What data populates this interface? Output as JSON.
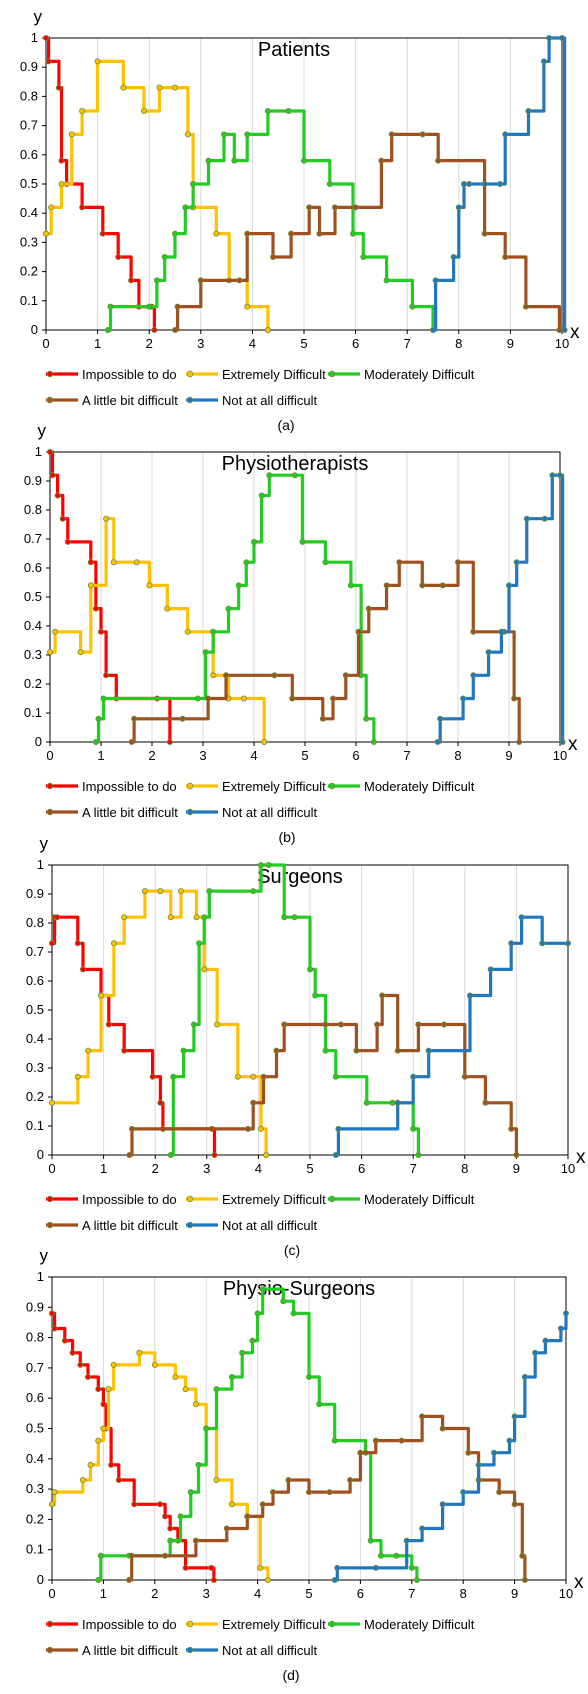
{
  "legend_labels": {
    "impossible": "Impossible to do",
    "extremely": "Extremely Difficult",
    "moderately": "Moderately Difficult",
    "little": "A little bit difficult",
    "not_at_all": "Not at all difficult"
  },
  "colors": {
    "impossible": "#ff0000",
    "extremely": "#ffc000",
    "moderately": "#22cc22",
    "little": "#a0501e",
    "not_at_all": "#1f77c0"
  },
  "chart_data": [
    {
      "type": "line",
      "title": "Patients",
      "xlabel": "x",
      "ylabel": "y",
      "xlim": [
        0,
        10
      ],
      "ylim": [
        0,
        1
      ],
      "xticks": [
        "0",
        "1",
        "2",
        "3",
        "4",
        "5",
        "6",
        "7",
        "8",
        "9",
        "10"
      ],
      "yticks": [
        "0",
        "0.1",
        "0.2",
        "0.3",
        "0.4",
        "0.5",
        "0.6",
        "0.7",
        "0.8",
        "0.9",
        "1"
      ],
      "caption": "(a)",
      "legend_position": "bottom",
      "series": [
        {
          "name": "Impossible to do",
          "key": "impossible",
          "x": [
            0,
            0.05,
            0.25,
            0.3,
            0.4,
            0.7,
            1.1,
            1.4,
            1.65,
            1.8,
            2.05,
            2.1
          ],
          "y": [
            1,
            0.92,
            0.83,
            0.58,
            0.5,
            0.42,
            0.33,
            0.25,
            0.17,
            0.08,
            0.08,
            0
          ]
        },
        {
          "name": "Extremely Difficult",
          "key": "extremely",
          "x": [
            0,
            0.1,
            0.3,
            0.5,
            0.7,
            1,
            1.5,
            1.9,
            2.2,
            2.5,
            2.75,
            2.85,
            3.3,
            3.55,
            3.9,
            4.3
          ],
          "y": [
            0.33,
            0.42,
            0.5,
            0.67,
            0.75,
            0.92,
            0.83,
            0.75,
            0.83,
            0.83,
            0.67,
            0.42,
            0.33,
            0.17,
            0.08,
            0
          ]
        },
        {
          "name": "Moderately Difficult",
          "key": "moderately",
          "x": [
            1.2,
            1.25,
            2,
            2.15,
            2.3,
            2.5,
            2.7,
            2.85,
            3.15,
            3.45,
            3.65,
            3.9,
            4.3,
            4.7,
            5,
            5.5,
            5.95,
            6.15,
            6.6,
            7.1,
            7.5
          ],
          "y": [
            0,
            0.08,
            0.08,
            0.17,
            0.25,
            0.33,
            0.42,
            0.5,
            0.58,
            0.67,
            0.58,
            0.67,
            0.75,
            0.75,
            0.58,
            0.5,
            0.33,
            0.25,
            0.17,
            0.08,
            0
          ]
        },
        {
          "name": "A little bit difficult",
          "key": "little",
          "x": [
            2.5,
            2.55,
            3,
            3.75,
            3.9,
            4.4,
            4.75,
            5.1,
            5.3,
            5.6,
            6,
            6.5,
            6.7,
            7.3,
            7.6,
            8.5,
            8.9,
            9.3,
            9.95
          ],
          "y": [
            0,
            0.08,
            0.17,
            0.17,
            0.33,
            0.25,
            0.33,
            0.42,
            0.33,
            0.42,
            0.42,
            0.58,
            0.67,
            0.67,
            0.58,
            0.33,
            0.25,
            0.08,
            0
          ]
        },
        {
          "name": "Not at all difficult",
          "key": "not_at_all",
          "x": [
            7.5,
            7.55,
            7.9,
            8,
            8.1,
            8.2,
            8.5,
            8.8,
            8.9,
            9.35,
            9.65,
            9.75,
            10,
            10.05
          ],
          "y": [
            0,
            0.17,
            0.25,
            0.42,
            0.5,
            0.5,
            0.5,
            0.5,
            0.67,
            0.75,
            0.92,
            1,
            1,
            0
          ]
        }
      ]
    },
    {
      "type": "line",
      "title": "Physiotherapists",
      "xlabel": "x",
      "ylabel": "y",
      "xlim": [
        0,
        10
      ],
      "ylim": [
        0,
        1
      ],
      "xticks": [
        "0",
        "1",
        "2",
        "3",
        "4",
        "5",
        "6",
        "7",
        "8",
        "9",
        "10"
      ],
      "yticks": [
        "0",
        "0.1",
        "0.2",
        "0.3",
        "0.4",
        "0.5",
        "0.6",
        "0.7",
        "0.8",
        "0.9",
        "1"
      ],
      "caption": "(b)",
      "legend_position": "bottom",
      "series": [
        {
          "name": "Impossible to do",
          "key": "impossible",
          "x": [
            0,
            0.05,
            0.15,
            0.25,
            0.35,
            0.8,
            0.9,
            1,
            1.1,
            1.3,
            2.1,
            2.35
          ],
          "y": [
            1,
            0.92,
            0.85,
            0.77,
            0.69,
            0.62,
            0.46,
            0.38,
            0.23,
            0.15,
            0.15,
            0
          ]
        },
        {
          "name": "Extremely Difficult",
          "key": "extremely",
          "x": [
            0,
            0.1,
            0.6,
            0.8,
            1.1,
            1.25,
            1.7,
            1.95,
            2.3,
            2.7,
            3.2,
            3.5,
            3.8,
            4.2
          ],
          "y": [
            0.31,
            0.38,
            0.31,
            0.54,
            0.77,
            0.62,
            0.62,
            0.54,
            0.46,
            0.38,
            0.23,
            0.15,
            0.15,
            0
          ]
        },
        {
          "name": "Moderately Difficult",
          "key": "moderately",
          "x": [
            0.9,
            0.95,
            1.05,
            2.9,
            3.05,
            3.2,
            3.5,
            3.7,
            3.85,
            4,
            4.15,
            4.3,
            4.8,
            4.95,
            5.4,
            5.9,
            6.1,
            6.2,
            6.35
          ],
          "y": [
            0,
            0.08,
            0.15,
            0.15,
            0.31,
            0.38,
            0.46,
            0.54,
            0.62,
            0.69,
            0.85,
            0.92,
            0.92,
            0.69,
            0.62,
            0.54,
            0.23,
            0.08,
            0
          ]
        },
        {
          "name": "A little bit difficult",
          "key": "little",
          "x": [
            1.6,
            1.65,
            2.6,
            3.1,
            3.45,
            4.4,
            4.75,
            5.35,
            5.55,
            5.8,
            6.05,
            6.25,
            6.6,
            6.85,
            7.3,
            7.7,
            8,
            8.3,
            8.9,
            9.1,
            9.2
          ],
          "y": [
            0,
            0.08,
            0.08,
            0.15,
            0.23,
            0.23,
            0.15,
            0.08,
            0.15,
            0.23,
            0.38,
            0.46,
            0.54,
            0.62,
            0.54,
            0.54,
            0.62,
            0.38,
            0.38,
            0.15,
            0
          ]
        },
        {
          "name": "Not at all difficult",
          "key": "not_at_all",
          "x": [
            7.6,
            7.65,
            8.1,
            8.3,
            8.6,
            8.85,
            9,
            9.15,
            9.35,
            9.7,
            9.85,
            10,
            10.05
          ],
          "y": [
            0,
            0.08,
            0.15,
            0.23,
            0.31,
            0.38,
            0.54,
            0.62,
            0.77,
            0.77,
            0.92,
            0.92,
            0
          ]
        }
      ]
    },
    {
      "type": "line",
      "title": "Surgeons",
      "xlabel": "x",
      "ylabel": "y",
      "xlim": [
        0,
        10
      ],
      "ylim": [
        0,
        1
      ],
      "xticks": [
        "0",
        "1",
        "2",
        "3",
        "4",
        "5",
        "6",
        "7",
        "8",
        "9",
        "10"
      ],
      "yticks": [
        "0",
        "0.1",
        "0.2",
        "0.3",
        "0.4",
        "0.5",
        "0.6",
        "0.7",
        "0.8",
        "0.9",
        "1"
      ],
      "caption": "(c)",
      "legend_position": "bottom",
      "series": [
        {
          "name": "Impossible to do",
          "key": "impossible",
          "x": [
            0,
            0.05,
            0.1,
            0.5,
            0.6,
            0.95,
            1.1,
            1.4,
            1.95,
            2.1,
            2.15,
            3.1,
            3.15
          ],
          "y": [
            0.73,
            0.82,
            0.82,
            0.73,
            0.64,
            0.55,
            0.45,
            0.36,
            0.27,
            0.18,
            0.09,
            0.09,
            0
          ]
        },
        {
          "name": "Extremely Difficult",
          "key": "extremely",
          "x": [
            0,
            0.5,
            0.7,
            0.95,
            1.2,
            1.4,
            1.8,
            2.1,
            2.3,
            2.5,
            2.8,
            2.95,
            3.2,
            3.6,
            3.9,
            4.05,
            4.15
          ],
          "y": [
            0.18,
            0.27,
            0.36,
            0.55,
            0.73,
            0.82,
            0.91,
            0.91,
            0.82,
            0.91,
            0.82,
            0.64,
            0.45,
            0.27,
            0.27,
            0.09,
            0
          ]
        },
        {
          "name": "Moderately Difficult",
          "key": "moderately",
          "x": [
            2.3,
            2.35,
            2.55,
            2.75,
            2.85,
            2.95,
            3.05,
            3.9,
            4.05,
            4.2,
            4.5,
            4.7,
            5,
            5.1,
            5.3,
            5.5,
            6.1,
            6.6,
            7.0,
            7.1
          ],
          "y": [
            0,
            0.27,
            0.36,
            0.45,
            0.73,
            0.82,
            0.91,
            0.91,
            1,
            1,
            0.82,
            0.82,
            0.64,
            0.55,
            0.36,
            0.27,
            0.18,
            0.18,
            0.09,
            0
          ]
        },
        {
          "name": "A little bit difficult",
          "key": "little",
          "x": [
            1.5,
            1.55,
            3.8,
            3.9,
            4.1,
            4.35,
            4.5,
            5.3,
            5.6,
            5.9,
            6.3,
            6.4,
            6.7,
            7.1,
            7.6,
            8,
            8.4,
            8.9,
            9.0
          ],
          "y": [
            0,
            0.09,
            0.09,
            0.18,
            0.27,
            0.36,
            0.45,
            0.45,
            0.45,
            0.36,
            0.45,
            0.55,
            0.36,
            0.45,
            0.45,
            0.27,
            0.18,
            0.09,
            0
          ]
        },
        {
          "name": "Not at all difficult",
          "key": "not_at_all",
          "x": [
            5.5,
            5.55,
            6.7,
            7,
            7.3,
            8.1,
            8.5,
            8.9,
            9.1,
            9.5,
            10
          ],
          "y": [
            0,
            0.09,
            0.18,
            0.27,
            0.36,
            0.55,
            0.64,
            0.73,
            0.82,
            0.73,
            0.73
          ]
        }
      ]
    },
    {
      "type": "line",
      "title": "Physio-Surgeons",
      "xlabel": "x",
      "ylabel": "y",
      "xlim": [
        0,
        10
      ],
      "ylim": [
        0,
        1
      ],
      "xticks": [
        "0",
        "1",
        "2",
        "3",
        "4",
        "5",
        "6",
        "7",
        "8",
        "9",
        "10"
      ],
      "yticks": [
        "0",
        "0.1",
        "0.2",
        "0.3",
        "0.4",
        "0.5",
        "0.6",
        "0.7",
        "0.8",
        "0.9",
        "1"
      ],
      "caption": "(d)",
      "legend_position": "bottom",
      "series": [
        {
          "name": "Impossible to do",
          "key": "impossible",
          "x": [
            0,
            0.05,
            0.25,
            0.4,
            0.55,
            0.7,
            0.9,
            1,
            1.05,
            1.15,
            1.3,
            1.6,
            2.1,
            2.2,
            2.3,
            2.45,
            2.6,
            3.1,
            3.15
          ],
          "y": [
            0.88,
            0.83,
            0.79,
            0.75,
            0.71,
            0.67,
            0.63,
            0.58,
            0.5,
            0.38,
            0.33,
            0.25,
            0.25,
            0.21,
            0.17,
            0.13,
            0.04,
            0.04,
            0
          ]
        },
        {
          "name": "Extremely Difficult",
          "key": "extremely",
          "x": [
            0,
            0.05,
            0.6,
            0.75,
            0.9,
            1,
            1.1,
            1.2,
            1.7,
            2,
            2.4,
            2.6,
            2.8,
            3,
            3.2,
            3.5,
            3.8,
            4.05,
            4.2
          ],
          "y": [
            0.25,
            0.29,
            0.33,
            0.38,
            0.46,
            0.5,
            0.63,
            0.71,
            0.75,
            0.71,
            0.67,
            0.63,
            0.58,
            0.5,
            0.33,
            0.25,
            0.21,
            0.04,
            0
          ]
        },
        {
          "name": "Moderately Difficult",
          "key": "moderately",
          "x": [
            0.9,
            0.95,
            1.5,
            2.3,
            2.5,
            2.7,
            2.85,
            3,
            3.2,
            3.5,
            3.7,
            3.9,
            4,
            4.1,
            4.5,
            4.7,
            5,
            5.2,
            5.5,
            6.1,
            6.2,
            6.4,
            6.7,
            7,
            7.1
          ],
          "y": [
            0,
            0.08,
            0.08,
            0.13,
            0.21,
            0.29,
            0.38,
            0.5,
            0.63,
            0.67,
            0.75,
            0.79,
            0.88,
            0.96,
            0.92,
            0.88,
            0.67,
            0.58,
            0.46,
            0.42,
            0.13,
            0.08,
            0.08,
            0.04,
            0
          ]
        },
        {
          "name": "A little bit difficult",
          "key": "little",
          "x": [
            1.5,
            1.55,
            2.2,
            2.8,
            3.4,
            3.8,
            4.1,
            4.3,
            4.6,
            5,
            5.4,
            5.8,
            6,
            6.3,
            6.8,
            7.2,
            7.6,
            8.1,
            8.3,
            8.7,
            9.0,
            9.15,
            9.2
          ],
          "y": [
            0,
            0.08,
            0.08,
            0.13,
            0.17,
            0.21,
            0.25,
            0.29,
            0.33,
            0.29,
            0.29,
            0.33,
            0.42,
            0.46,
            0.46,
            0.54,
            0.5,
            0.42,
            0.33,
            0.29,
            0.25,
            0.08,
            0
          ]
        },
        {
          "name": "Not at all difficult",
          "key": "not_at_all",
          "x": [
            5.5,
            5.55,
            6.3,
            6.9,
            7.2,
            7.6,
            8,
            8.3,
            8.6,
            8.9,
            9,
            9.2,
            9.4,
            9.6,
            9.9,
            10
          ],
          "y": [
            0,
            0.04,
            0.04,
            0.13,
            0.17,
            0.25,
            0.29,
            0.38,
            0.42,
            0.46,
            0.54,
            0.67,
            0.75,
            0.79,
            0.83,
            0.88
          ]
        }
      ]
    }
  ]
}
